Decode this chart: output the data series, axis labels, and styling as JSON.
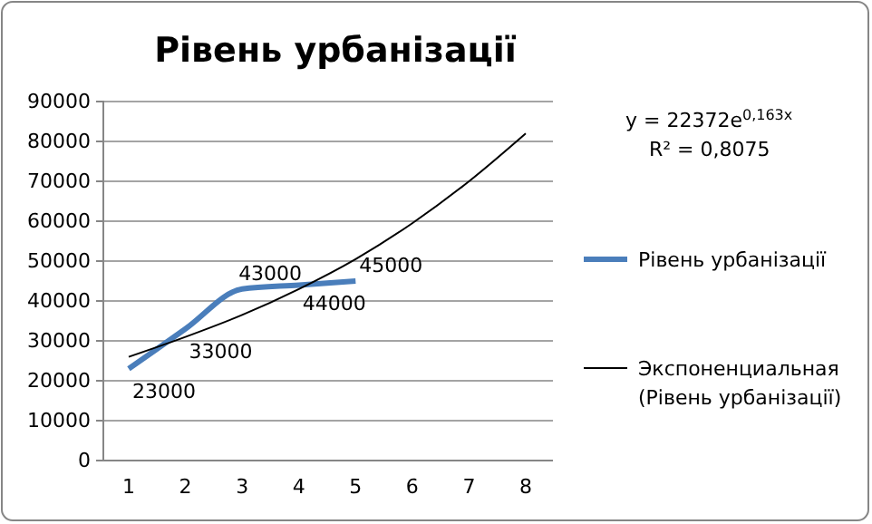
{
  "chart_data": {
    "type": "line",
    "title": "Рівень урбанізації",
    "categories": [
      "1",
      "2",
      "3",
      "4",
      "5",
      "6",
      "7",
      "8"
    ],
    "series": [
      {
        "name": "Рівень урбанізації",
        "color": "#4a7ebb",
        "values": [
          23000,
          33000,
          43000,
          44000,
          45000,
          null,
          null,
          null
        ],
        "value_labels": [
          "23000",
          "33000",
          "43000",
          "44000",
          "45000",
          null,
          null,
          null
        ]
      },
      {
        "name": "Экспоненциальная (Рівень урбанізації)",
        "color": "#000000",
        "values": [
          26000,
          31000,
          36500,
          43000,
          50500,
          59500,
          70000,
          82000
        ]
      }
    ],
    "ylim": [
      0,
      90000
    ],
    "yticks": [
      0,
      10000,
      20000,
      30000,
      40000,
      50000,
      60000,
      70000,
      80000,
      90000
    ],
    "grid": "y",
    "legend": "right",
    "annotations": [
      "y = 22372e$^{0,163x}$",
      "R² = 0,8075"
    ]
  }
}
